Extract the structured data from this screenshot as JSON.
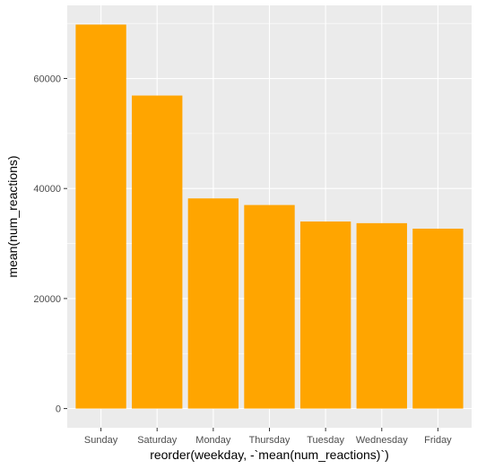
{
  "chart_data": {
    "type": "bar",
    "categories": [
      "Sunday",
      "Saturday",
      "Monday",
      "Thursday",
      "Tuesday",
      "Wednesday",
      "Friday"
    ],
    "values": [
      69800,
      56900,
      38200,
      37000,
      34000,
      33700,
      32700
    ],
    "xlabel": "reorder(weekday, -`mean(num_reactions)`)",
    "ylabel": "mean(num_reactions)",
    "ylim": [
      -3490,
      73290
    ],
    "yticks": [
      0,
      20000,
      40000,
      60000
    ],
    "grid": true,
    "bar_color": "#FFA500",
    "panel_color": "#EBEBEB",
    "grid_color": "#FFFFFF"
  }
}
